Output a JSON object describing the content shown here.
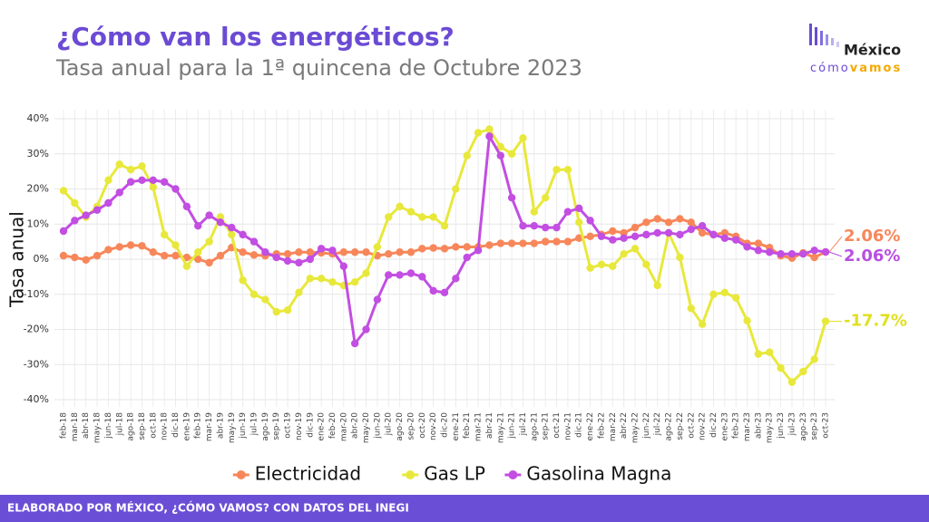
{
  "chart_data": {
    "type": "line",
    "title": "¿Cómo van los energéticos?",
    "subtitle": "Tasa anual para la 1ª quincena de Octubre 2023",
    "y_label": "Tasa anual",
    "categories": [
      "feb-18",
      "mar-18",
      "abr-18",
      "may-18",
      "jun-18",
      "jul-18",
      "ago-18",
      "sep-18",
      "oct-18",
      "nov-18",
      "dic-18",
      "ene-19",
      "feb-19",
      "mar-19",
      "abr-19",
      "may-19",
      "jun-19",
      "jul-19",
      "ago-19",
      "sep-19",
      "oct-19",
      "nov-19",
      "dic-19",
      "ene-20",
      "feb-20",
      "mar-20",
      "abr-20",
      "may-20",
      "jun-20",
      "jul-20",
      "ago-20",
      "sep-20",
      "oct-20",
      "nov-20",
      "dic-20",
      "ene-21",
      "feb-21",
      "mar-21",
      "abr-21",
      "may-21",
      "jun-21",
      "jul-21",
      "ago-21",
      "sep-21",
      "oct-21",
      "nov-21",
      "dic-21",
      "ene-22",
      "feb-22",
      "mar-22",
      "abr-22",
      "may-22",
      "jun-22",
      "jul-22",
      "ago-22",
      "sep-22",
      "oct-22",
      "nov-22",
      "dic-22",
      "ene-23",
      "feb-23",
      "mar-23",
      "abr-23",
      "may-23",
      "jun-23",
      "jul-23",
      "ago-23",
      "sep-23",
      "oct-23"
    ],
    "series": [
      {
        "name": "Electricidad",
        "color": "#f7875a",
        "values": [
          1,
          0.5,
          -0.2,
          1,
          2.7,
          3.5,
          4,
          3.8,
          2,
          1,
          1,
          0.5,
          0,
          -1,
          1,
          3.3,
          2,
          1.2,
          1,
          1.5,
          1.5,
          2,
          2,
          1.8,
          1.5,
          2,
          2,
          2,
          1,
          1.5,
          2,
          2,
          3,
          3.2,
          3,
          3.5,
          3.5,
          3.5,
          4,
          4.5,
          4.5,
          4.5,
          4.5,
          5,
          5,
          5,
          6,
          6.5,
          7,
          8,
          7.5,
          9,
          10.5,
          11.5,
          10.5,
          11.5,
          10.5,
          7.5,
          7,
          7.5,
          6.5,
          4.5,
          4.5,
          3.3,
          1,
          0.3,
          1.8,
          0.5,
          2.06
        ],
        "value_labels": [
          null,
          null,
          null,
          null,
          null,
          null,
          null,
          null,
          null,
          null,
          null,
          null,
          null,
          null,
          null,
          null,
          null,
          null,
          null,
          null,
          null,
          null,
          null,
          null,
          null,
          null,
          null,
          null,
          null,
          null,
          null,
          null,
          null,
          null,
          null,
          null,
          null,
          null,
          null,
          null,
          null,
          null,
          null,
          null,
          null,
          null,
          null,
          null,
          null,
          null,
          null,
          null,
          null,
          null,
          null,
          null,
          null,
          null,
          null,
          null,
          null,
          null,
          null,
          null,
          null,
          null,
          null,
          null,
          "2.06%"
        ]
      },
      {
        "name": "Gas LP",
        "color": "#e8e83c",
        "values": [
          19.5,
          16,
          12,
          15,
          22.5,
          27,
          25.5,
          26.5,
          20.5,
          7,
          4,
          -2,
          2,
          5,
          12,
          7,
          -6,
          -10,
          -11.5,
          -15,
          -14.5,
          -9.5,
          -5.5,
          -5.5,
          -6.5,
          -7.5,
          -6.5,
          -4,
          3.5,
          12,
          15,
          13.5,
          12,
          12,
          9.5,
          20,
          29.5,
          36,
          37,
          32,
          30,
          34.5,
          13.5,
          17.5,
          25.5,
          25.5,
          10.5,
          -2.5,
          -1.5,
          -2,
          1.5,
          3,
          -1.5,
          -7.5,
          7.5,
          0.5,
          -14,
          -18.5,
          -10,
          -9.5,
          -11,
          -17.5,
          -27,
          -26.5,
          -31,
          -35,
          -32,
          -28.5,
          -17.7
        ],
        "value_labels": [
          null,
          null,
          null,
          null,
          null,
          null,
          null,
          null,
          null,
          null,
          null,
          null,
          null,
          null,
          null,
          null,
          null,
          null,
          null,
          null,
          null,
          null,
          null,
          null,
          null,
          null,
          null,
          null,
          null,
          null,
          null,
          null,
          null,
          null,
          null,
          null,
          null,
          null,
          null,
          null,
          null,
          null,
          null,
          null,
          null,
          null,
          null,
          null,
          null,
          null,
          null,
          null,
          null,
          null,
          null,
          null,
          null,
          null,
          null,
          null,
          null,
          null,
          null,
          null,
          null,
          null,
          null,
          null,
          "-17.7%"
        ]
      },
      {
        "name": "Gasolina Magna",
        "color": "#c24ee2",
        "values": [
          8,
          11,
          12.5,
          14,
          16,
          19,
          22,
          22.5,
          22.5,
          22,
          20,
          15,
          9.5,
          12.5,
          10.5,
          9,
          7,
          5,
          2,
          0.5,
          -0.5,
          -1,
          0,
          3,
          2.5,
          -2,
          -24,
          -20,
          -11.5,
          -4.5,
          -4.5,
          -4,
          -5,
          -9,
          -9.5,
          -5.5,
          0.5,
          2.5,
          35,
          29.5,
          17.5,
          9.5,
          9.5,
          9,
          9,
          13.5,
          14.5,
          11,
          6.5,
          5.5,
          6,
          6.5,
          7,
          7.5,
          7.5,
          7,
          8.5,
          9.5,
          7,
          6,
          5.5,
          3.5,
          2.5,
          2,
          1.5,
          1.5,
          1.5,
          2.5,
          2.06
        ],
        "value_labels": [
          null,
          null,
          null,
          null,
          null,
          null,
          null,
          null,
          null,
          null,
          null,
          null,
          null,
          null,
          null,
          null,
          null,
          null,
          null,
          null,
          null,
          null,
          null,
          null,
          null,
          null,
          null,
          null,
          null,
          null,
          null,
          null,
          null,
          null,
          null,
          null,
          null,
          null,
          null,
          null,
          null,
          null,
          null,
          null,
          null,
          null,
          null,
          null,
          null,
          null,
          null,
          null,
          null,
          null,
          null,
          null,
          null,
          null,
          null,
          null,
          null,
          null,
          null,
          null,
          null,
          null,
          null,
          null,
          "2.06%"
        ]
      }
    ],
    "ylim": [
      -40,
      40
    ],
    "yticks": [
      {
        "value": -40,
        "label": "-40%"
      },
      {
        "value": -30,
        "label": "-30%"
      },
      {
        "value": -20,
        "label": "-20%"
      },
      {
        "value": -10,
        "label": "-10%"
      },
      {
        "value": 0,
        "label": "0%"
      },
      {
        "value": 10,
        "label": "10%"
      },
      {
        "value": 20,
        "label": "20%"
      },
      {
        "value": 30,
        "label": "30%"
      },
      {
        "value": 40,
        "label": "40%"
      }
    ],
    "grid": true,
    "legend": "bottom"
  },
  "logo": {
    "name": "México",
    "tagline_1": "cómo",
    "tagline_2": "vamos"
  },
  "footer": "ELABORADO POR MÉXICO, ¿CÓMO VAMOS? CON DATOS DEL INEGI"
}
